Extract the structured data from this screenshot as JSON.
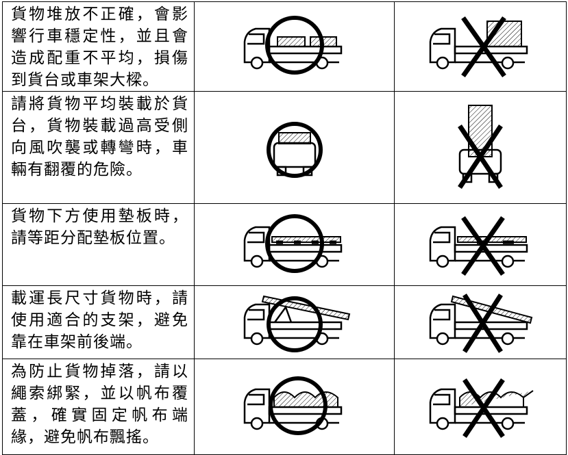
{
  "table": {
    "rows": [
      [
        "貨物堆放不正確，會影響行車穩定性，並且會造成配重不平均，損傷到貨台或車架大樑。"
      ],
      [
        "請將貨物平均裝載於貨台，貨物裝載過高受側向風吹襲或轉彎時，車輛有翻覆的危險。"
      ],
      [
        "貨物下方使用墊板時，請等距分配墊板位置。"
      ],
      [
        "載運長尺寸貨物時，請使用適合的支架，避免靠在車架前後端。"
      ],
      [
        "為防止貨物掉落，請以繩索綁緊，並以帆布覆蓋，確實固定帆布端緣，避免帆布飄搖。"
      ]
    ]
  }
}
